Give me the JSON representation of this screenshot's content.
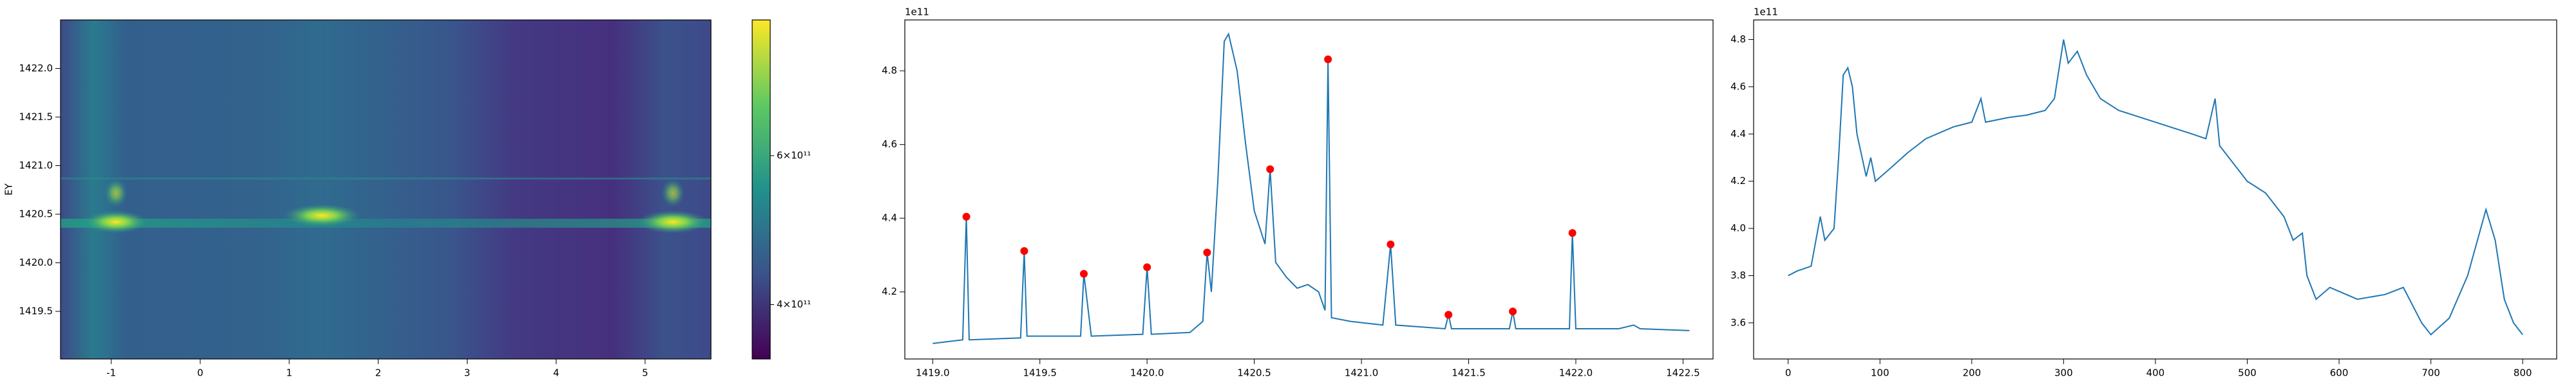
{
  "chart_data": [
    {
      "type": "heatmap",
      "ylabel": "EY",
      "xlim": [
        -1.57,
        5.74
      ],
      "xticks": [
        -1,
        0,
        1,
        2,
        3,
        4,
        5
      ],
      "ylim": [
        1419.01,
        1422.5
      ],
      "yticks": [
        {
          "value": 1419.5,
          "label": "1419.5"
        },
        {
          "value": 1420,
          "label": "1420.0"
        },
        {
          "value": 1420.5,
          "label": "1420.5"
        },
        {
          "value": 1421,
          "label": "1421.0"
        },
        {
          "value": 1421.5,
          "label": "1421.5"
        },
        {
          "value": 1422,
          "label": "1422.0"
        }
      ],
      "colorbar": {
        "scale": "log",
        "lim": [
          345000000000,
          868000000000
        ],
        "ticks": [
          {
            "value": 400000000000,
            "label": "4×10¹¹"
          },
          {
            "value": 600000000000,
            "label": "6×10¹¹"
          }
        ]
      }
    },
    {
      "type": "line",
      "offset_text": "1e11",
      "color": "#1f77b4",
      "xlim": [
        1418.87,
        1422.64
      ],
      "xticks": [
        {
          "value": 1419,
          "label": "1419.0"
        },
        1419.5,
        {
          "value": 1420,
          "label": "1420.0"
        },
        1420.5,
        {
          "value": 1421,
          "label": "1421.0"
        },
        1421.5,
        {
          "value": 1422,
          "label": "1422.0"
        },
        1422.5
      ],
      "ylim": [
        4.018,
        4.938
      ],
      "yticks": [
        4.2,
        4.4,
        4.6,
        4.8
      ],
      "x": [
        1419.0,
        1419.14,
        1419.157,
        1419.17,
        1419.41,
        1419.427,
        1419.44,
        1419.69,
        1419.705,
        1419.74,
        1419.98,
        1420.0,
        1420.02,
        1420.2,
        1420.26,
        1420.28,
        1420.3,
        1420.33,
        1420.36,
        1420.38,
        1420.42,
        1420.46,
        1420.5,
        1420.55,
        1420.574,
        1420.6,
        1420.65,
        1420.7,
        1420.75,
        1420.8,
        1420.83,
        1420.844,
        1420.86,
        1420.95,
        1421.1,
        1421.136,
        1421.16,
        1421.39,
        1421.406,
        1421.42,
        1421.69,
        1421.706,
        1421.72,
        1421.97,
        1421.984,
        1422.0,
        1422.2,
        1422.27,
        1422.3,
        1422.53
      ],
      "values": [
        4.06,
        4.07,
        4.404,
        4.07,
        4.075,
        4.311,
        4.08,
        4.08,
        4.249,
        4.08,
        4.085,
        4.267,
        4.085,
        4.09,
        4.12,
        4.307,
        4.2,
        4.5,
        4.88,
        4.9,
        4.8,
        4.6,
        4.42,
        4.33,
        4.533,
        4.28,
        4.24,
        4.21,
        4.22,
        4.2,
        4.15,
        4.831,
        4.13,
        4.12,
        4.11,
        4.329,
        4.11,
        4.1,
        4.138,
        4.1,
        4.1,
        4.147,
        4.1,
        4.1,
        4.36,
        4.1,
        4.1,
        4.11,
        4.1,
        4.095
      ],
      "peaks": {
        "color": "red",
        "x": [
          1419.157,
          1419.427,
          1419.705,
          1420.0,
          1420.28,
          1420.574,
          1420.844,
          1421.136,
          1421.406,
          1421.706,
          1421.984
        ],
        "values": [
          4.404,
          4.311,
          4.249,
          4.267,
          4.307,
          4.533,
          4.831,
          4.329,
          4.138,
          4.147,
          4.36
        ]
      }
    },
    {
      "type": "line",
      "offset_text": "1e11",
      "color": "#1f77b4",
      "xlim": [
        -37.6,
        837
      ],
      "xticks": [
        0,
        100,
        200,
        300,
        400,
        500,
        600,
        700,
        800
      ],
      "ylim": [
        3.447,
        4.883
      ],
      "yticks": [
        3.6,
        3.8,
        {
          "value": 4,
          "label": "4.0"
        },
        4.2,
        4.4,
        4.6,
        4.8
      ],
      "x": [
        0,
        10,
        25,
        35,
        40,
        50,
        55,
        60,
        65,
        70,
        75,
        85,
        90,
        95,
        110,
        130,
        150,
        180,
        200,
        210,
        215,
        240,
        260,
        280,
        290,
        300,
        305,
        315,
        325,
        340,
        360,
        400,
        440,
        455,
        465,
        470,
        480,
        500,
        520,
        540,
        550,
        560,
        565,
        575,
        590,
        620,
        650,
        670,
        690,
        700,
        720,
        740,
        760,
        770,
        780,
        790,
        800
      ],
      "values": [
        3.8,
        3.82,
        3.84,
        4.05,
        3.95,
        4.0,
        4.3,
        4.65,
        4.68,
        4.6,
        4.4,
        4.22,
        4.3,
        4.2,
        4.25,
        4.32,
        4.38,
        4.43,
        4.45,
        4.55,
        4.45,
        4.47,
        4.48,
        4.5,
        4.55,
        4.8,
        4.7,
        4.75,
        4.65,
        4.55,
        4.5,
        4.45,
        4.4,
        4.38,
        4.55,
        4.35,
        4.3,
        4.2,
        4.15,
        4.05,
        3.95,
        3.98,
        3.8,
        3.7,
        3.75,
        3.7,
        3.72,
        3.75,
        3.6,
        3.55,
        3.62,
        3.8,
        4.08,
        3.95,
        3.7,
        3.6,
        3.55
      ]
    }
  ]
}
